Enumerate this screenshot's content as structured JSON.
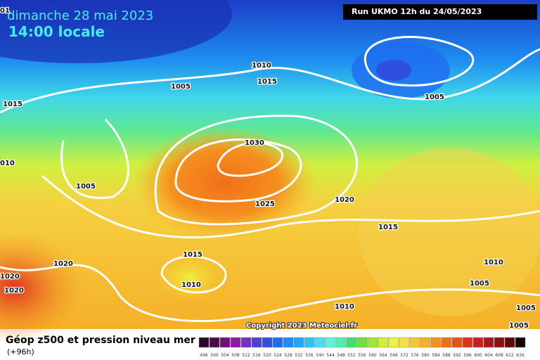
{
  "header": {
    "date": "dimanche 28 mai 2023",
    "time": "14:00 locale",
    "run": "Run UKMO 12h du 24/05/2023"
  },
  "isobar_labels": [
    "01",
    "1015",
    "010",
    "1005",
    "1005",
    "1010",
    "1015",
    "1030",
    "1025",
    "1020",
    "1015",
    "1005",
    "1015",
    "1010",
    "1020",
    "1020",
    "1020",
    "1010",
    "1005",
    "1005",
    "1005",
    "1010"
  ],
  "copyright": "Copyright 2023 Meteociel.fr",
  "footer": {
    "title": "Géop z500 et pression niveau mer",
    "lead": "(+96h)"
  },
  "legend": {
    "labels": [
      "496",
      "500",
      "504",
      "508",
      "512",
      "516",
      "520",
      "524",
      "528",
      "532",
      "536",
      "540",
      "544",
      "548",
      "552",
      "556",
      "560",
      "564",
      "568",
      "572",
      "576",
      "580",
      "584",
      "588",
      "592",
      "596",
      "600",
      "604",
      "608",
      "612",
      "616"
    ],
    "colors": [
      "#2a0a2a",
      "#4b0a4b",
      "#6e0f78",
      "#8a1aa0",
      "#7a2fc0",
      "#5040d0",
      "#2f4fe0",
      "#1e6cf0",
      "#1e8cf5",
      "#20a8f5",
      "#30c4f5",
      "#50dcf0",
      "#60f0e0",
      "#50f0b0",
      "#40e070",
      "#70e040",
      "#a0e830",
      "#d0f030",
      "#f0f040",
      "#f5e040",
      "#f5c830",
      "#f5b028",
      "#f59020",
      "#f07018",
      "#e85018",
      "#e03020",
      "#c82020",
      "#a81818",
      "#881010",
      "#600808",
      "#100404"
    ]
  }
}
